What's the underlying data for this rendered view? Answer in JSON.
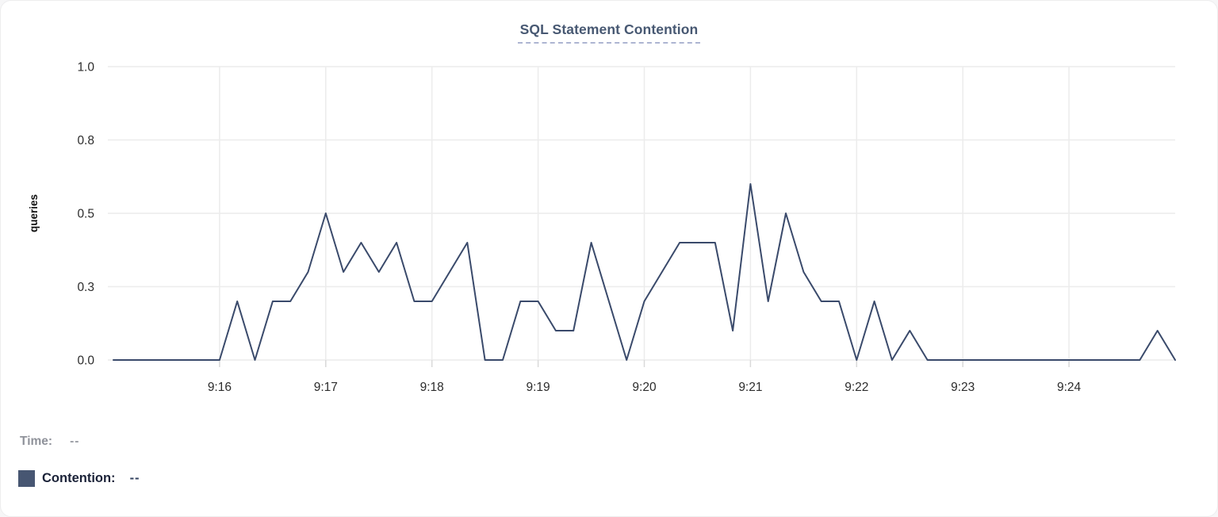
{
  "card": {
    "title": "SQL Statement Contention"
  },
  "tooltip_legend": {
    "time_label": "Time:",
    "time_value": "--",
    "series_label": "Contention:",
    "series_value": "--"
  },
  "colors": {
    "series_line": "#3a4a6b",
    "series_swatch": "#475672",
    "title_text": "#475872",
    "grid_line": "#ececec",
    "axis_tick_mark": "#d9d9d9",
    "tick_label_text": "#2c2c2c",
    "axis_title_text": "#111111"
  },
  "chart_data": {
    "type": "line",
    "title": "SQL Statement Contention",
    "xlabel": "",
    "ylabel": "queries",
    "ylim": [
      0,
      1.0
    ],
    "grid": true,
    "legend_position": "bottom-left",
    "y_ticks": [
      {
        "value": 0,
        "label": "0.0"
      },
      {
        "value": 0.25,
        "label": "0.3"
      },
      {
        "value": 0.5,
        "label": "0.5"
      },
      {
        "value": 0.75,
        "label": "0.8"
      },
      {
        "value": 1.0,
        "label": "1.0"
      }
    ],
    "x_ticks": [
      "9:16",
      "9:17",
      "9:18",
      "9:19",
      "9:20",
      "9:21",
      "9:22",
      "9:23",
      "9:24"
    ],
    "x_range": [
      "9:15:00",
      "9:25:00"
    ],
    "sample_interval_seconds": 10,
    "series": [
      {
        "name": "Contention",
        "start": "9:15:00",
        "values": [
          0,
          0,
          0,
          0,
          0,
          0,
          0,
          0.2,
          0,
          0.2,
          0.2,
          0.3,
          0.5,
          0.3,
          0.4,
          0.3,
          0.4,
          0.2,
          0.2,
          0.3,
          0.4,
          0,
          0,
          0.2,
          0.2,
          0.1,
          0.1,
          0.4,
          0.2,
          0,
          0.2,
          0.3,
          0.4,
          0.4,
          0.4,
          0.1,
          0.6,
          0.2,
          0.5,
          0.3,
          0.2,
          0.2,
          0,
          0.2,
          0,
          0.1,
          0,
          0,
          0,
          0,
          0,
          0,
          0,
          0,
          0,
          0,
          0,
          0,
          0,
          0.1,
          0
        ]
      }
    ]
  }
}
